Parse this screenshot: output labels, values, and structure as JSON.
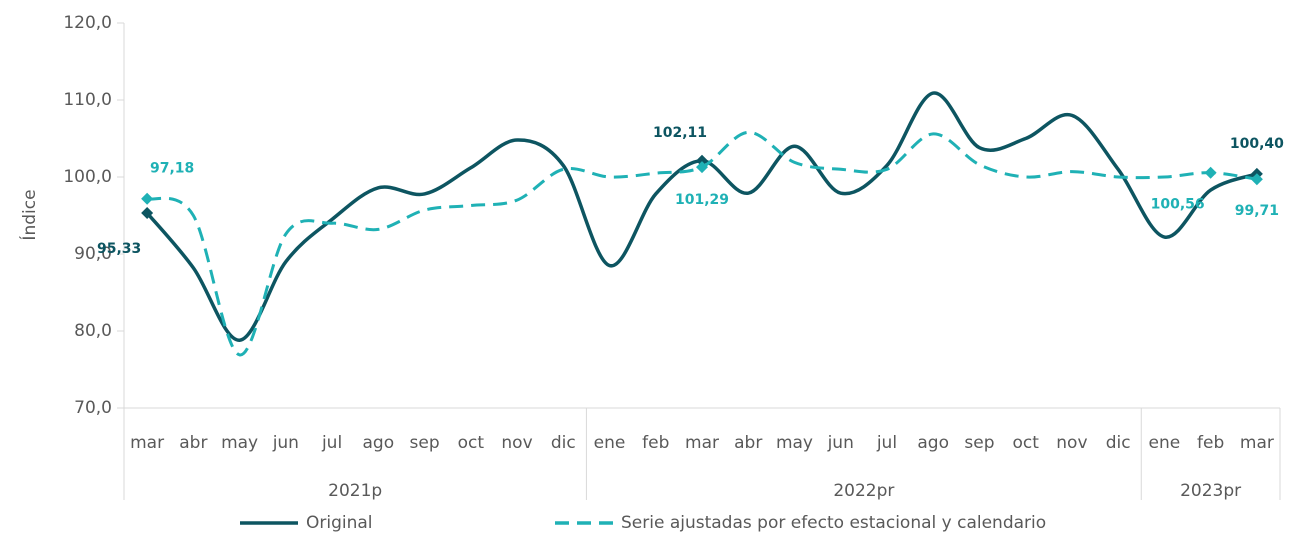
{
  "chart_data": {
    "type": "line",
    "y_axis_label": "Índice",
    "categories": [
      "mar",
      "abr",
      "may",
      "jun",
      "jul",
      "ago",
      "sep",
      "oct",
      "nov",
      "dic",
      "ene",
      "feb",
      "mar",
      "abr",
      "may",
      "jun",
      "jul",
      "ago",
      "sep",
      "oct",
      "nov",
      "dic",
      "ene",
      "feb",
      "mar"
    ],
    "x_groups": [
      {
        "label": "2021p",
        "categories": 10
      },
      {
        "label": "2022pr",
        "categories": 12
      },
      {
        "label": "2023pr",
        "categories": 3
      }
    ],
    "ylim": [
      70,
      120
    ],
    "yticks": [
      {
        "value": 70,
        "label": "70,0"
      },
      {
        "value": 80,
        "label": "80,0"
      },
      {
        "value": 90,
        "label": "90,0"
      },
      {
        "value": 100,
        "label": "100,0"
      },
      {
        "value": 110,
        "label": "110,0"
      },
      {
        "value": 120,
        "label": "120,0"
      }
    ],
    "series": [
      {
        "name": "Original",
        "color": "#0d5561",
        "dash": false,
        "values": [
          95.33,
          88.2,
          78.8,
          89,
          94.5,
          98.6,
          97.8,
          101.2,
          104.8,
          101.5,
          88.5,
          97.8,
          102.11,
          97.9,
          104,
          97.9,
          101.5,
          110.9,
          103.8,
          105,
          108,
          101,
          92.2,
          98.3,
          100.4
        ],
        "value_labels": [
          "95,33",
          null,
          null,
          null,
          null,
          null,
          null,
          null,
          null,
          null,
          null,
          null,
          "102,11",
          null,
          null,
          null,
          null,
          null,
          null,
          null,
          null,
          null,
          null,
          null,
          "100,40"
        ]
      },
      {
        "name": "Serie ajustadas por efecto estacional y calendario",
        "color": "#1fb1b5",
        "dash": true,
        "values": [
          97.18,
          95,
          76.9,
          92.6,
          94,
          93.2,
          95.7,
          96.3,
          97,
          101,
          100,
          100.5,
          101.29,
          105.8,
          101.9,
          101,
          101,
          105.6,
          101.6,
          100,
          100.7,
          100,
          100,
          100.56,
          99.71
        ],
        "value_labels": [
          "97,18",
          null,
          null,
          null,
          null,
          null,
          null,
          null,
          null,
          null,
          null,
          null,
          "101,29",
          null,
          null,
          null,
          null,
          null,
          null,
          null,
          null,
          null,
          null,
          "100,56",
          "99,71"
        ]
      }
    ],
    "grid": false
  }
}
